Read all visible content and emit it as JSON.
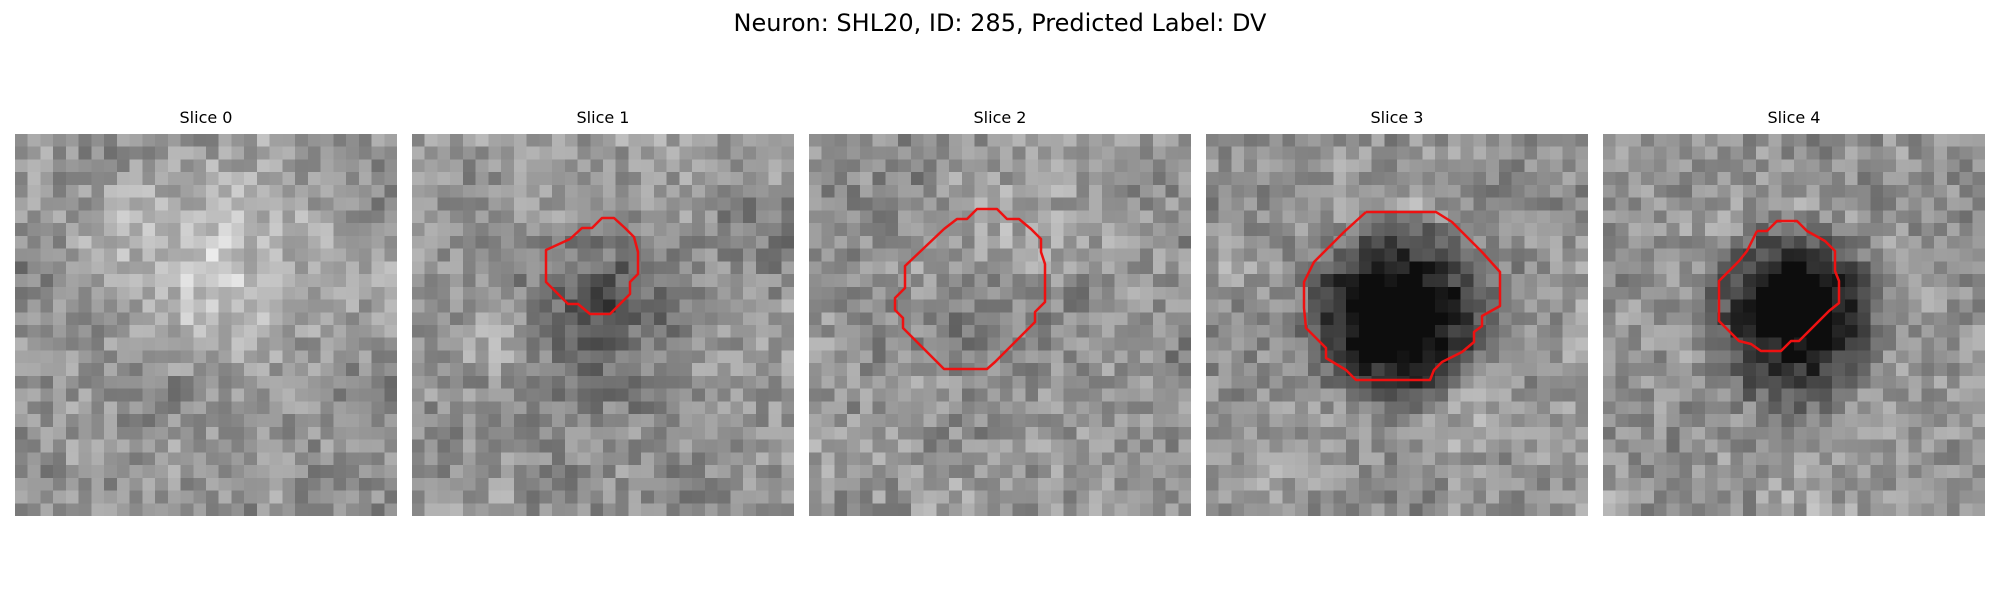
{
  "figure": {
    "title": "Neuron: SHL20, ID: 285, Predicted Label: DV"
  },
  "contour_color": "#ee1111",
  "panels": [
    {
      "title": "Slice 0",
      "image": "grayscale-microscopy-patch",
      "has_contour": false,
      "dark_blob": 0,
      "light_blob": 0.7
    },
    {
      "title": "Slice 1",
      "image": "grayscale-microscopy-patch",
      "has_contour": true,
      "dark_blob": 0.35,
      "light_blob": 0.2
    },
    {
      "title": "Slice 2",
      "image": "grayscale-microscopy-patch",
      "has_contour": true,
      "dark_blob": 0.15,
      "light_blob": 0.3
    },
    {
      "title": "Slice 3",
      "image": "grayscale-microscopy-patch",
      "has_contour": true,
      "dark_blob": 0.95,
      "light_blob": 0.1
    },
    {
      "title": "Slice 4",
      "image": "grayscale-microscopy-patch",
      "has_contour": true,
      "dark_blob": 0.85,
      "light_blob": 0.15
    }
  ]
}
